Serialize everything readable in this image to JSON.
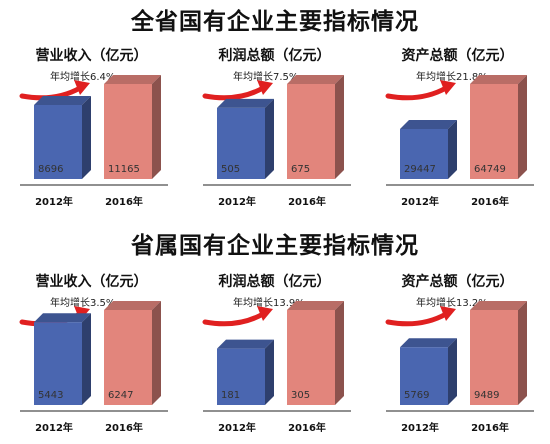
{
  "page": {
    "title_top": "全省国有企业主要指标情况",
    "title_bottom": "省属国有企业主要指标情况"
  },
  "colors": {
    "bar_2012": "#4a66b0",
    "bar_2016": "#e2857c",
    "arrow": "#e02020"
  },
  "chart_data": [
    {
      "type": "bar",
      "title": "营业收入（亿元）",
      "growth_label": "年均增长6.4%",
      "categories": [
        "2012年",
        "2016年"
      ],
      "values": [
        8696,
        11165
      ]
    },
    {
      "type": "bar",
      "title": "利润总额（亿元）",
      "growth_label": "年均增长7.5%",
      "categories": [
        "2012年",
        "2016年"
      ],
      "values": [
        505,
        675
      ]
    },
    {
      "type": "bar",
      "title": "资产总额（亿元）",
      "growth_label": "年均增长21.8%",
      "categories": [
        "2012年",
        "2016年"
      ],
      "values": [
        29447,
        64749
      ]
    },
    {
      "type": "bar",
      "title": "营业收入（亿元）",
      "growth_label": "年均增长3.5%",
      "categories": [
        "2012年",
        "2016年"
      ],
      "values": [
        5443,
        6247
      ]
    },
    {
      "type": "bar",
      "title": "利润总额（亿元）",
      "growth_label": "年均增长13.9%",
      "categories": [
        "2012年",
        "2016年"
      ],
      "values": [
        181,
        305
      ]
    },
    {
      "type": "bar",
      "title": "资产总额（亿元）",
      "growth_label": "年均增长13.2%",
      "categories": [
        "2012年",
        "2016年"
      ],
      "values": [
        5769,
        9489
      ]
    }
  ]
}
